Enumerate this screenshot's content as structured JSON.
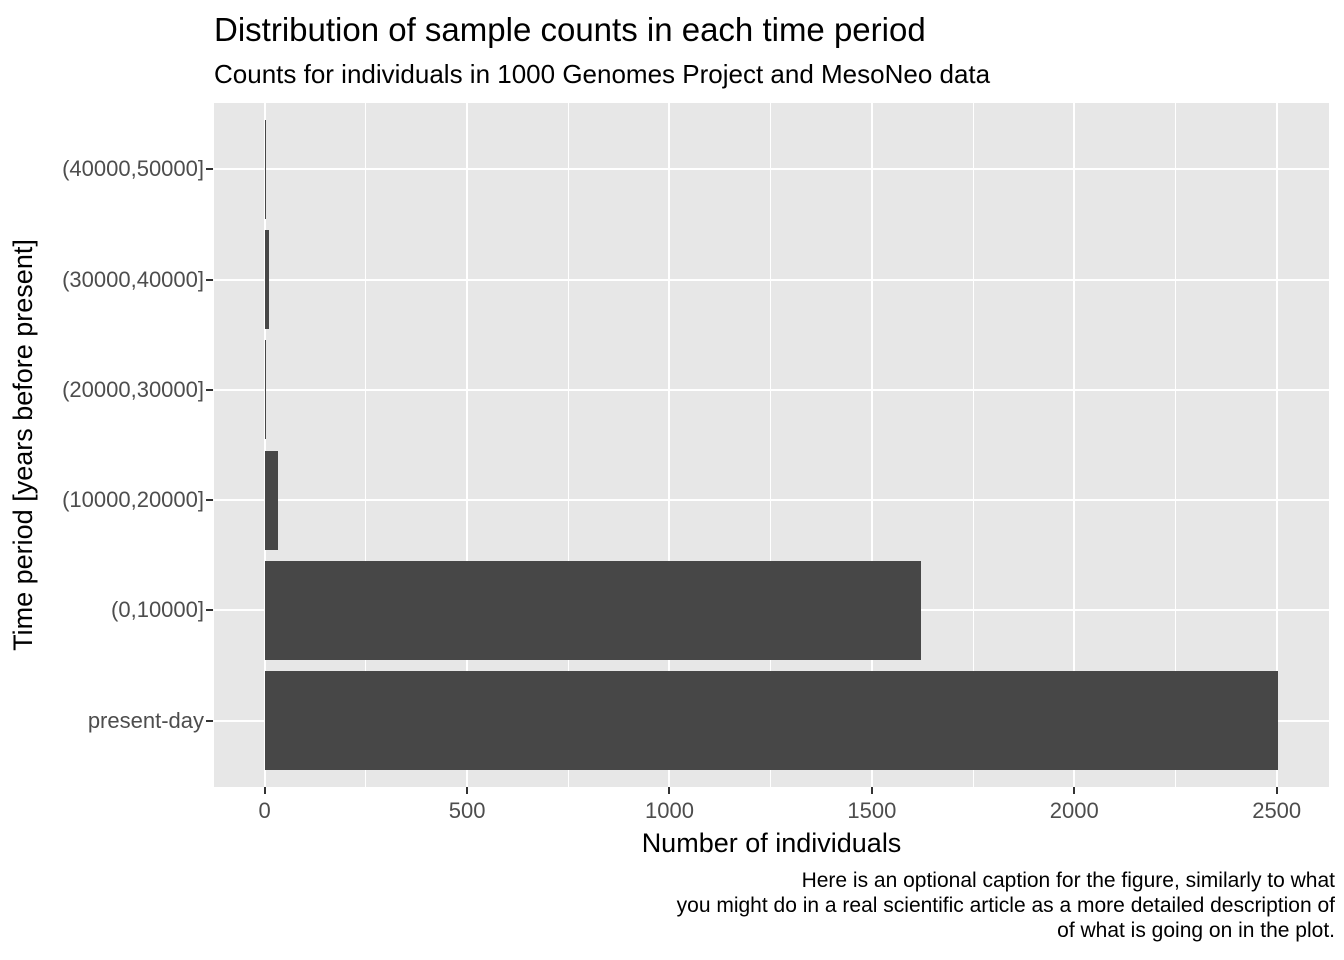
{
  "title": "Distribution of sample counts in each time period",
  "subtitle": "Counts for individuals in 1000 Genomes Project and MesoNeo data",
  "caption_lines": [
    "Here is an optional caption for the figure, similarly to what",
    "you might do in a real scientific article as a more detailed description of",
    "of what is going on in the plot."
  ],
  "chart_data": {
    "type": "bar",
    "orientation": "horizontal",
    "title": "Distribution of sample counts in each time period",
    "subtitle": "Counts for individuals in 1000 Genomes Project and MesoNeo data",
    "xlabel": "Number of individuals",
    "ylabel": "Time period [years before present]",
    "categories": [
      "(40000,50000]",
      "(30000,40000]",
      "(20000,30000]",
      "(10000,20000]",
      "(0,10000]",
      "present-day"
    ],
    "values": [
      4,
      10,
      3,
      32,
      1622,
      2504
    ],
    "x_major_ticks": [
      0,
      500,
      1000,
      1500,
      2000,
      2500
    ],
    "x_minor_ticks": [
      250,
      750,
      1250,
      1750,
      2250
    ],
    "xlim_data": [
      0,
      2504
    ],
    "grid": true,
    "legend": false,
    "colors": {
      "bar_fill": "#474747",
      "panel_background": "#e7e7e7",
      "gridline": "#ffffff",
      "axis_text": "#4d4d4d",
      "tick_mark": "#333333",
      "title_text": "#000000"
    }
  }
}
